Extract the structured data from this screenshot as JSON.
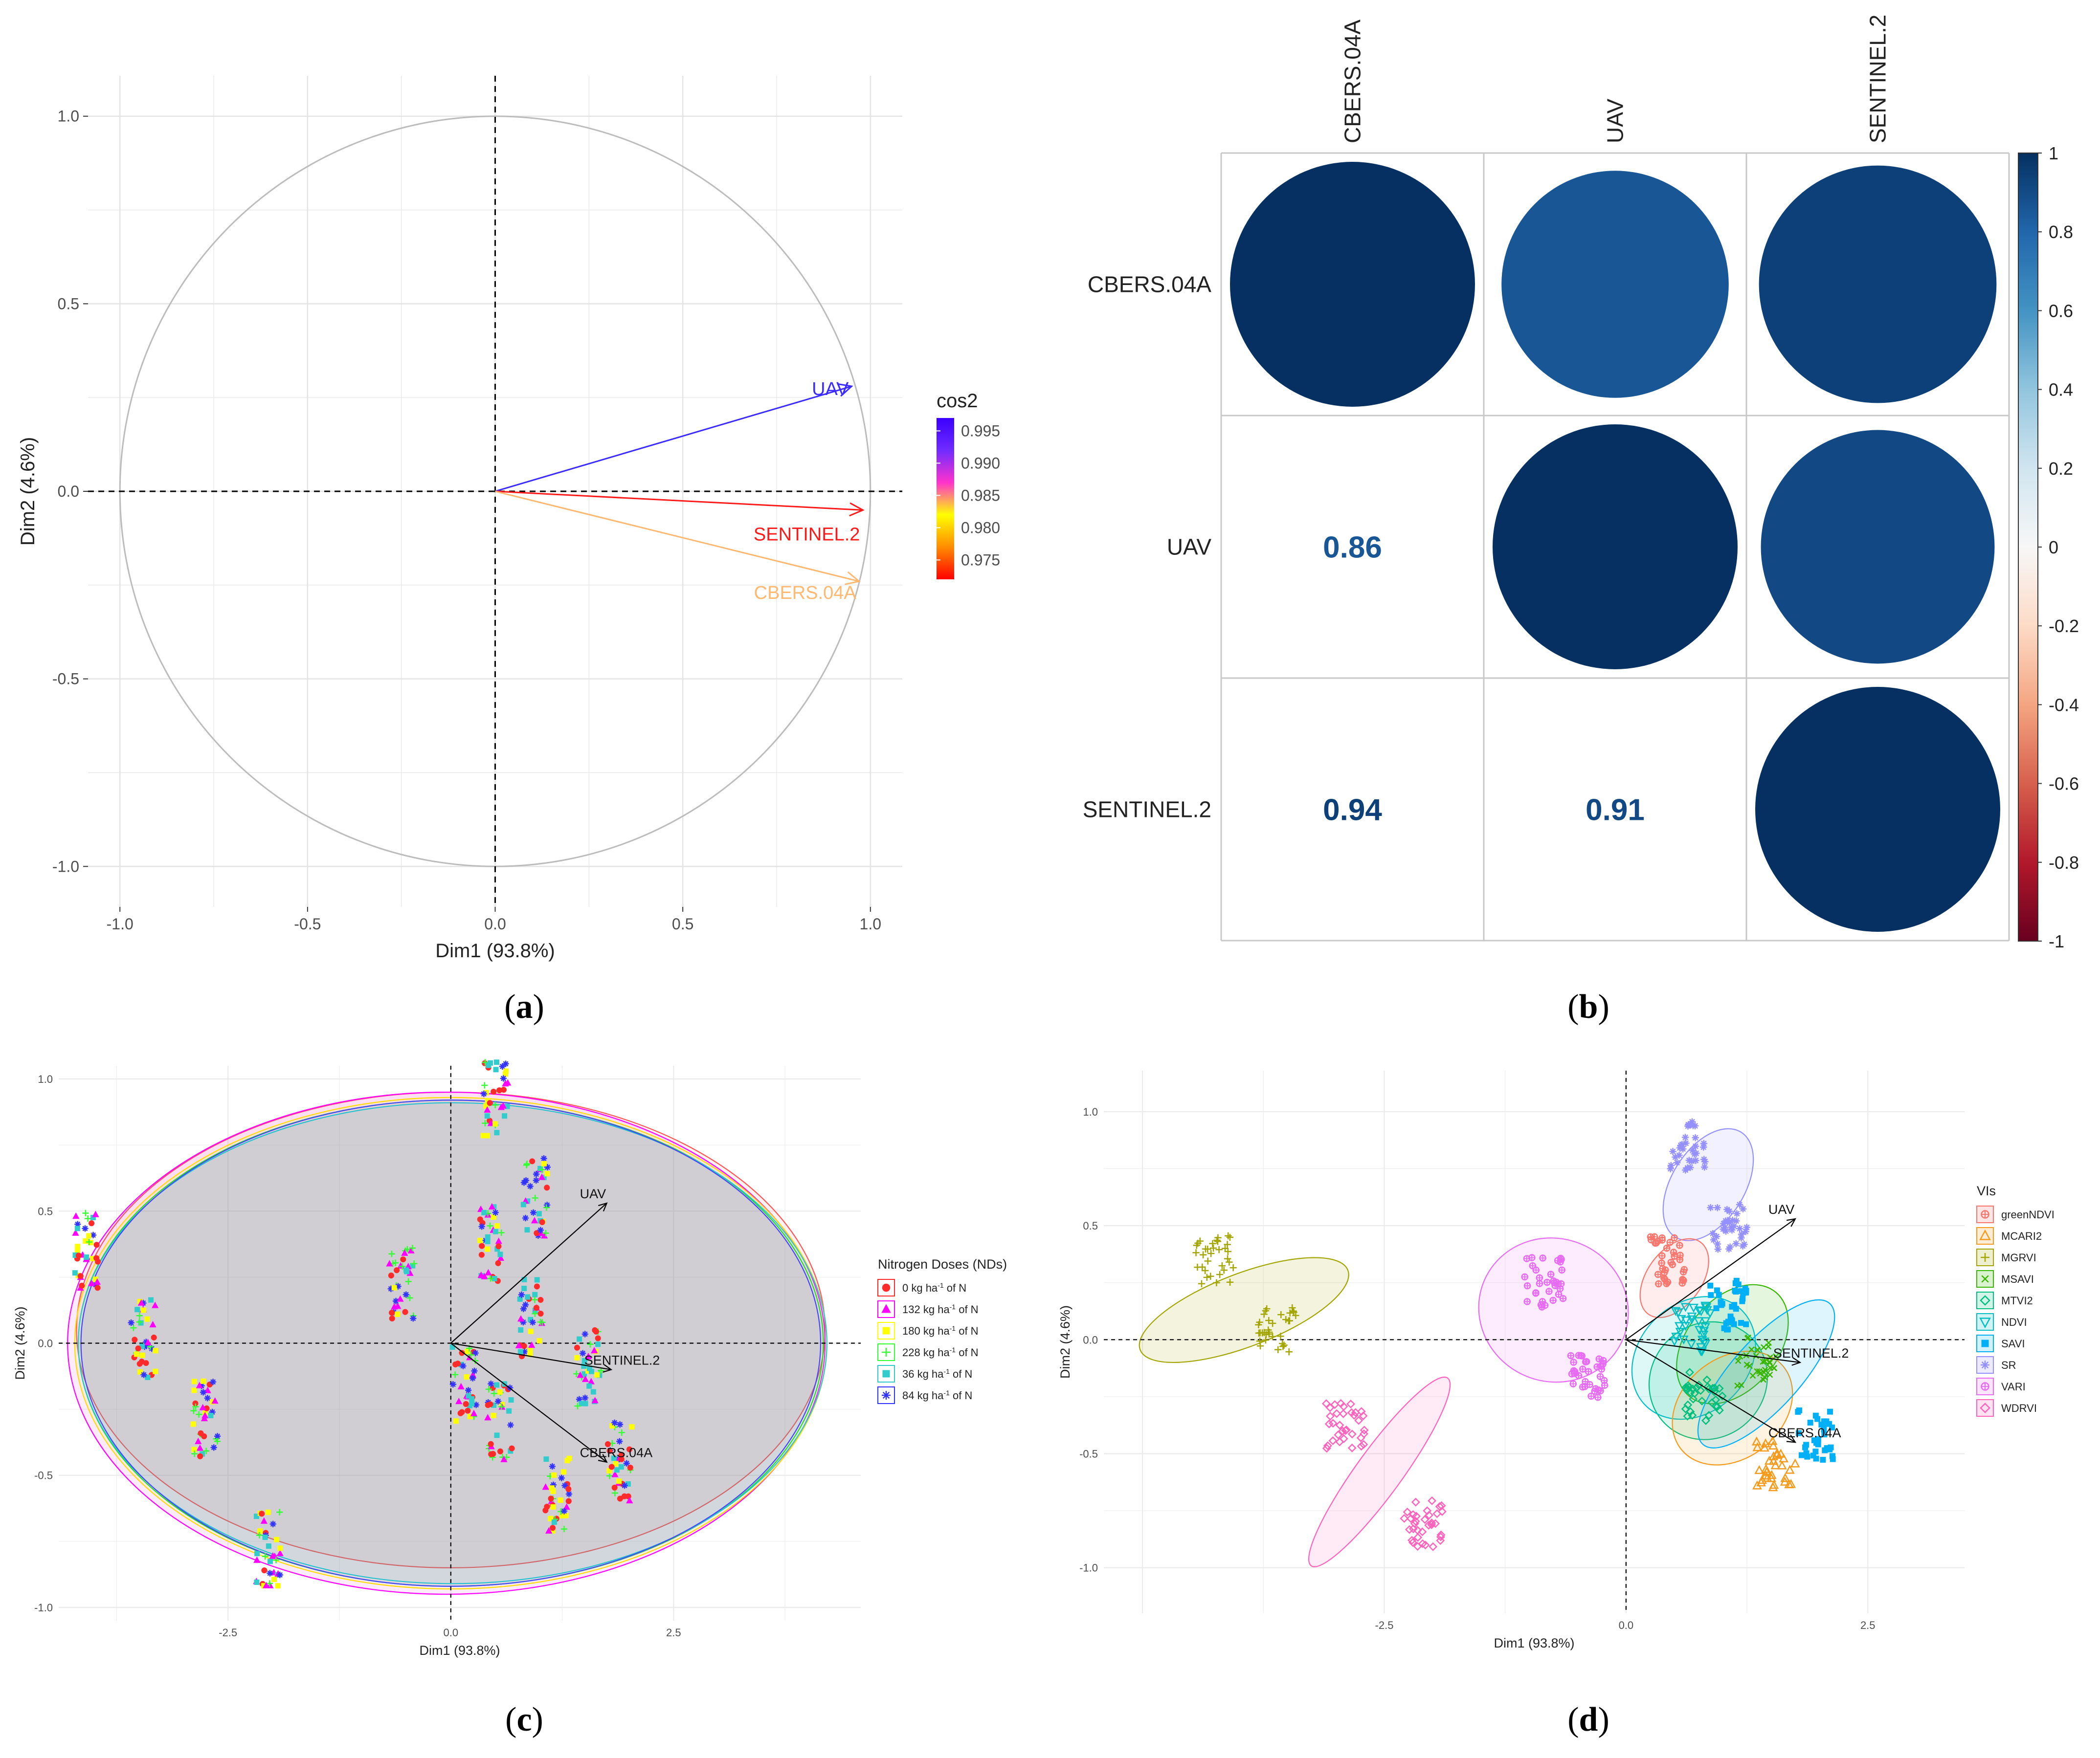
{
  "panel_labels": {
    "a": "a",
    "b": "b",
    "c": "c",
    "d": "d"
  },
  "chart_data": [
    {
      "panel": "a",
      "type": "scatter",
      "subtype": "pca_variable_correlation_circle",
      "xlabel": "Dim1 (93.8%)",
      "ylabel": "Dim2 (4.6%)",
      "xlim": [
        -1.0,
        1.0
      ],
      "ylim": [
        -1.0,
        1.0
      ],
      "xticks": [
        "-1.0",
        "-0.5",
        "0.0",
        "0.5",
        "1.0"
      ],
      "yticks": [
        "-1.0",
        "-0.5",
        "0.0",
        "0.5",
        "1.0"
      ],
      "grid": true,
      "legend": {
        "title": "cos2",
        "ticks": [
          "0.995",
          "0.990",
          "0.985",
          "0.980",
          "0.975"
        ],
        "tick_values": [
          0.995,
          0.99,
          0.985,
          0.98,
          0.975
        ],
        "range": [
          0.972,
          0.997
        ],
        "colors": [
          "#ff0000",
          "#ff8c00",
          "#ffff00",
          "#ff33cc",
          "#6f2bff",
          "#3b00ff"
        ],
        "placement": "right"
      },
      "vectors": [
        {
          "label": "UAV",
          "x": 0.95,
          "y": 0.28,
          "color": "#3b2bff"
        },
        {
          "label": "SENTINEL.2",
          "x": 0.98,
          "y": -0.05,
          "color": "#ff1a1a"
        },
        {
          "label": "CBERS.04A",
          "x": 0.97,
          "y": -0.24,
          "color": "#ffb870"
        }
      ]
    },
    {
      "panel": "b",
      "type": "heatmap",
      "subtype": "correlation_matrix_circles",
      "variables": [
        "CBERS.04A",
        "UAV",
        "SENTINEL.2"
      ],
      "matrix": [
        [
          1.0,
          0.86,
          0.94
        ],
        [
          0.86,
          1.0,
          0.91
        ],
        [
          0.94,
          0.91,
          1.0
        ]
      ],
      "lower_triangle_labels": [
        {
          "row": 1,
          "col": 0,
          "text": "0.86"
        },
        {
          "row": 2,
          "col": 0,
          "text": "0.94"
        },
        {
          "row": 2,
          "col": 1,
          "text": "0.91"
        }
      ],
      "colorbar": {
        "ticks": [
          "1",
          "0.8",
          "0.6",
          "0.4",
          "0.2",
          "0",
          "-0.2",
          "-0.4",
          "-0.6",
          "-0.8",
          "-1"
        ],
        "tick_values": [
          1,
          0.8,
          0.6,
          0.4,
          0.2,
          0,
          -0.2,
          -0.4,
          -0.6,
          -0.8,
          -1
        ],
        "colors_top_to_bottom": [
          "#053061",
          "#2166ac",
          "#4393c3",
          "#92c5de",
          "#d1e5f0",
          "#f7f7f7",
          "#fddbc7",
          "#f4a582",
          "#d6604d",
          "#b2182b",
          "#67001f"
        ],
        "placement": "right"
      }
    },
    {
      "panel": "c",
      "type": "scatter",
      "subtype": "pca_biplot",
      "xlabel": "Dim1 (93.8%)",
      "ylabel": "Dim2 (4.6%)",
      "xlim": [
        -4.4,
        4.6
      ],
      "ylim": [
        -1.05,
        1.05
      ],
      "xticks": [
        "-2.5",
        "0.0",
        "2.5"
      ],
      "xtick_values": [
        -2.5,
        0.0,
        2.5
      ],
      "yticks": [
        "-1.0",
        "-0.5",
        "0.0",
        "0.5",
        "1.0"
      ],
      "ytick_values": [
        -1.0,
        -0.5,
        0.0,
        0.5,
        1.0
      ],
      "grid": true,
      "legend": {
        "title": "Nitrogen Doses (NDs)",
        "placement": "right",
        "entries": [
          {
            "label_main": "0 kg ha",
            "label_sup": "-1",
            "label_tail": " of N",
            "color": "#ff2a2a",
            "shape": "circle"
          },
          {
            "label_main": "132 kg ha",
            "label_sup": "-1",
            "label_tail": " of N",
            "color": "#ff00ff",
            "shape": "triangle"
          },
          {
            "label_main": "180 kg ha",
            "label_sup": "-1",
            "label_tail": " of N",
            "color": "#ffff00",
            "shape": "square"
          },
          {
            "label_main": "228 kg ha",
            "label_sup": "-1",
            "label_tail": " of N",
            "color": "#33ff33",
            "shape": "plus"
          },
          {
            "label_main": "36 kg ha",
            "label_sup": "-1",
            "label_tail": " of N",
            "color": "#33cccc",
            "shape": "square"
          },
          {
            "label_main": "84 kg ha",
            "label_sup": "-1",
            "label_tail": " of N",
            "color": "#3333ff",
            "shape": "asterisk"
          }
        ]
      },
      "ellipses": [
        {
          "cx": 0.0,
          "cy": 0.05,
          "rx": 4.2,
          "ry": 0.9,
          "color": "#ff5555"
        },
        {
          "cx": -0.05,
          "cy": 0.0,
          "rx": 4.25,
          "ry": 0.95,
          "color": "#ff00ff"
        },
        {
          "cx": 0.0,
          "cy": 0.0,
          "rx": 4.22,
          "ry": 0.93,
          "color": "#ffdd00"
        },
        {
          "cx": 0.0,
          "cy": 0.0,
          "rx": 4.18,
          "ry": 0.92,
          "color": "#22dd22"
        },
        {
          "cx": 0.02,
          "cy": 0.0,
          "rx": 4.2,
          "ry": 0.91,
          "color": "#22cccc"
        },
        {
          "cx": 0.0,
          "cy": 0.0,
          "rx": 4.15,
          "ry": 0.92,
          "color": "#4444ff"
        }
      ],
      "clusters": [
        {
          "x": -4.1,
          "y": 0.35
        },
        {
          "x": -3.45,
          "y": 0.02
        },
        {
          "x": -2.75,
          "y": -0.28
        },
        {
          "x": -2.05,
          "y": -0.78
        },
        {
          "x": -0.55,
          "y": 0.23
        },
        {
          "x": 0.45,
          "y": 0.38
        },
        {
          "x": 0.5,
          "y": 0.92
        },
        {
          "x": 0.95,
          "y": 0.55
        },
        {
          "x": 0.9,
          "y": 0.1
        },
        {
          "x": 0.55,
          "y": -0.3
        },
        {
          "x": 1.2,
          "y": -0.58
        },
        {
          "x": 1.9,
          "y": -0.45
        },
        {
          "x": 1.55,
          "y": -0.1
        },
        {
          "x": 0.15,
          "y": -0.15
        }
      ],
      "vectors": [
        {
          "label": "UAV",
          "x": 1.75,
          "y": 0.53
        },
        {
          "label": "SENTINEL.2",
          "x": 1.8,
          "y": -0.1
        },
        {
          "label": "CBERS.04A",
          "x": 1.75,
          "y": -0.45
        }
      ]
    },
    {
      "panel": "d",
      "type": "scatter",
      "subtype": "pca_biplot",
      "xlabel": "Dim1 (93.8%)",
      "ylabel": "Dim2 (4.6%)",
      "xlim": [
        -5.4,
        3.5
      ],
      "ylim": [
        -1.2,
        1.18
      ],
      "xticks": [
        "-2.5",
        "0.0",
        "2.5"
      ],
      "xtick_values": [
        -2.5,
        0.0,
        2.5
      ],
      "yticks": [
        "-1.0",
        "-0.5",
        "0.0",
        "0.5",
        "1.0"
      ],
      "ytick_values": [
        -1.0,
        -0.5,
        0.0,
        0.5,
        1.0
      ],
      "grid": true,
      "legend": {
        "title": "VIs",
        "placement": "right",
        "entries": [
          {
            "label": "greenNDVI",
            "color": "#f8766d",
            "shape": "circle-plus"
          },
          {
            "label": "MCARI2",
            "color": "#f59a1a",
            "shape": "triangle"
          },
          {
            "label": "MGRVI",
            "color": "#a3a500",
            "shape": "plus"
          },
          {
            "label": "MSAVI",
            "color": "#39b600",
            "shape": "cross"
          },
          {
            "label": "MTVI2",
            "color": "#00bf7d",
            "shape": "diamond"
          },
          {
            "label": "NDVI",
            "color": "#00bfc4",
            "shape": "triangle-down"
          },
          {
            "label": "SAVI",
            "color": "#00b0f6",
            "shape": "square"
          },
          {
            "label": "SR",
            "color": "#9590ff",
            "shape": "asterisk"
          },
          {
            "label": "VARI",
            "color": "#e76bf3",
            "shape": "circle-plus"
          },
          {
            "label": "WDRVI",
            "color": "#ff62bc",
            "shape": "diamond"
          }
        ]
      },
      "ellipses": [
        {
          "name": "MGRVI",
          "cx": -3.95,
          "cy": 0.13,
          "rx": 1.15,
          "ry": 0.16,
          "angle_deg": 21,
          "color": "#a3a500"
        },
        {
          "name": "WDRVI",
          "cx": -2.55,
          "cy": -0.58,
          "rx": 1.2,
          "ry": 0.1,
          "angle_deg": 54,
          "color": "#ff62bc"
        },
        {
          "name": "VARI",
          "cx": -0.75,
          "cy": 0.13,
          "rx": 0.74,
          "ry": 0.33,
          "angle_deg": 68,
          "color": "#e76bf3"
        },
        {
          "name": "SR",
          "cx": 0.85,
          "cy": 0.68,
          "rx": 0.64,
          "ry": 0.16,
          "angle_deg": 58,
          "color": "#9590ff"
        },
        {
          "name": "greenNDVI",
          "cx": 0.5,
          "cy": 0.27,
          "rx": 0.46,
          "ry": 0.12,
          "angle_deg": 54,
          "color": "#f8766d"
        },
        {
          "name": "MSAVI",
          "cx": 1.1,
          "cy": -0.02,
          "rx": 0.7,
          "ry": 0.2,
          "angle_deg": 50,
          "color": "#39b600"
        },
        {
          "name": "MTVI2",
          "cx": 0.85,
          "cy": -0.18,
          "rx": 0.63,
          "ry": 0.25,
          "angle_deg": 43,
          "color": "#00bf7d"
        },
        {
          "name": "NDVI",
          "cx": 0.7,
          "cy": -0.08,
          "rx": 0.7,
          "ry": 0.24,
          "angle_deg": 44,
          "color": "#00bfc4"
        },
        {
          "name": "MCARI2",
          "cx": 1.1,
          "cy": -0.3,
          "rx": 0.68,
          "ry": 0.22,
          "angle_deg": 39,
          "color": "#f59a1a"
        },
        {
          "name": "SAVI",
          "cx": 1.45,
          "cy": -0.15,
          "rx": 0.98,
          "ry": 0.15,
          "angle_deg": 48,
          "color": "#00b0f6"
        }
      ],
      "clusters": [
        {
          "series": "MGRVI",
          "x": -4.25,
          "y": 0.35
        },
        {
          "series": "MGRVI",
          "x": -3.6,
          "y": 0.05
        },
        {
          "series": "WDRVI",
          "x": -2.9,
          "y": -0.38
        },
        {
          "series": "WDRVI",
          "x": -2.1,
          "y": -0.8
        },
        {
          "series": "VARI",
          "x": -0.85,
          "y": 0.25
        },
        {
          "series": "VARI",
          "x": -0.4,
          "y": -0.15
        },
        {
          "series": "SR",
          "x": 0.65,
          "y": 0.85
        },
        {
          "series": "SR",
          "x": 1.05,
          "y": 0.5
        },
        {
          "series": "greenNDVI",
          "x": 0.45,
          "y": 0.35
        },
        {
          "series": "MSAVI",
          "x": 1.35,
          "y": -0.1
        },
        {
          "series": "MTVI2",
          "x": 0.8,
          "y": -0.25
        },
        {
          "series": "NDVI",
          "x": 0.7,
          "y": 0.05
        },
        {
          "series": "MCARI2",
          "x": 1.55,
          "y": -0.55
        },
        {
          "series": "SAVI",
          "x": 1.95,
          "y": -0.42
        },
        {
          "series": "SAVI",
          "x": 1.05,
          "y": 0.15
        }
      ],
      "vectors": [
        {
          "label": "UAV",
          "x": 1.75,
          "y": 0.53
        },
        {
          "label": "SENTINEL.2",
          "x": 1.8,
          "y": -0.1
        },
        {
          "label": "CBERS.04A",
          "x": 1.75,
          "y": -0.45
        }
      ]
    }
  ]
}
